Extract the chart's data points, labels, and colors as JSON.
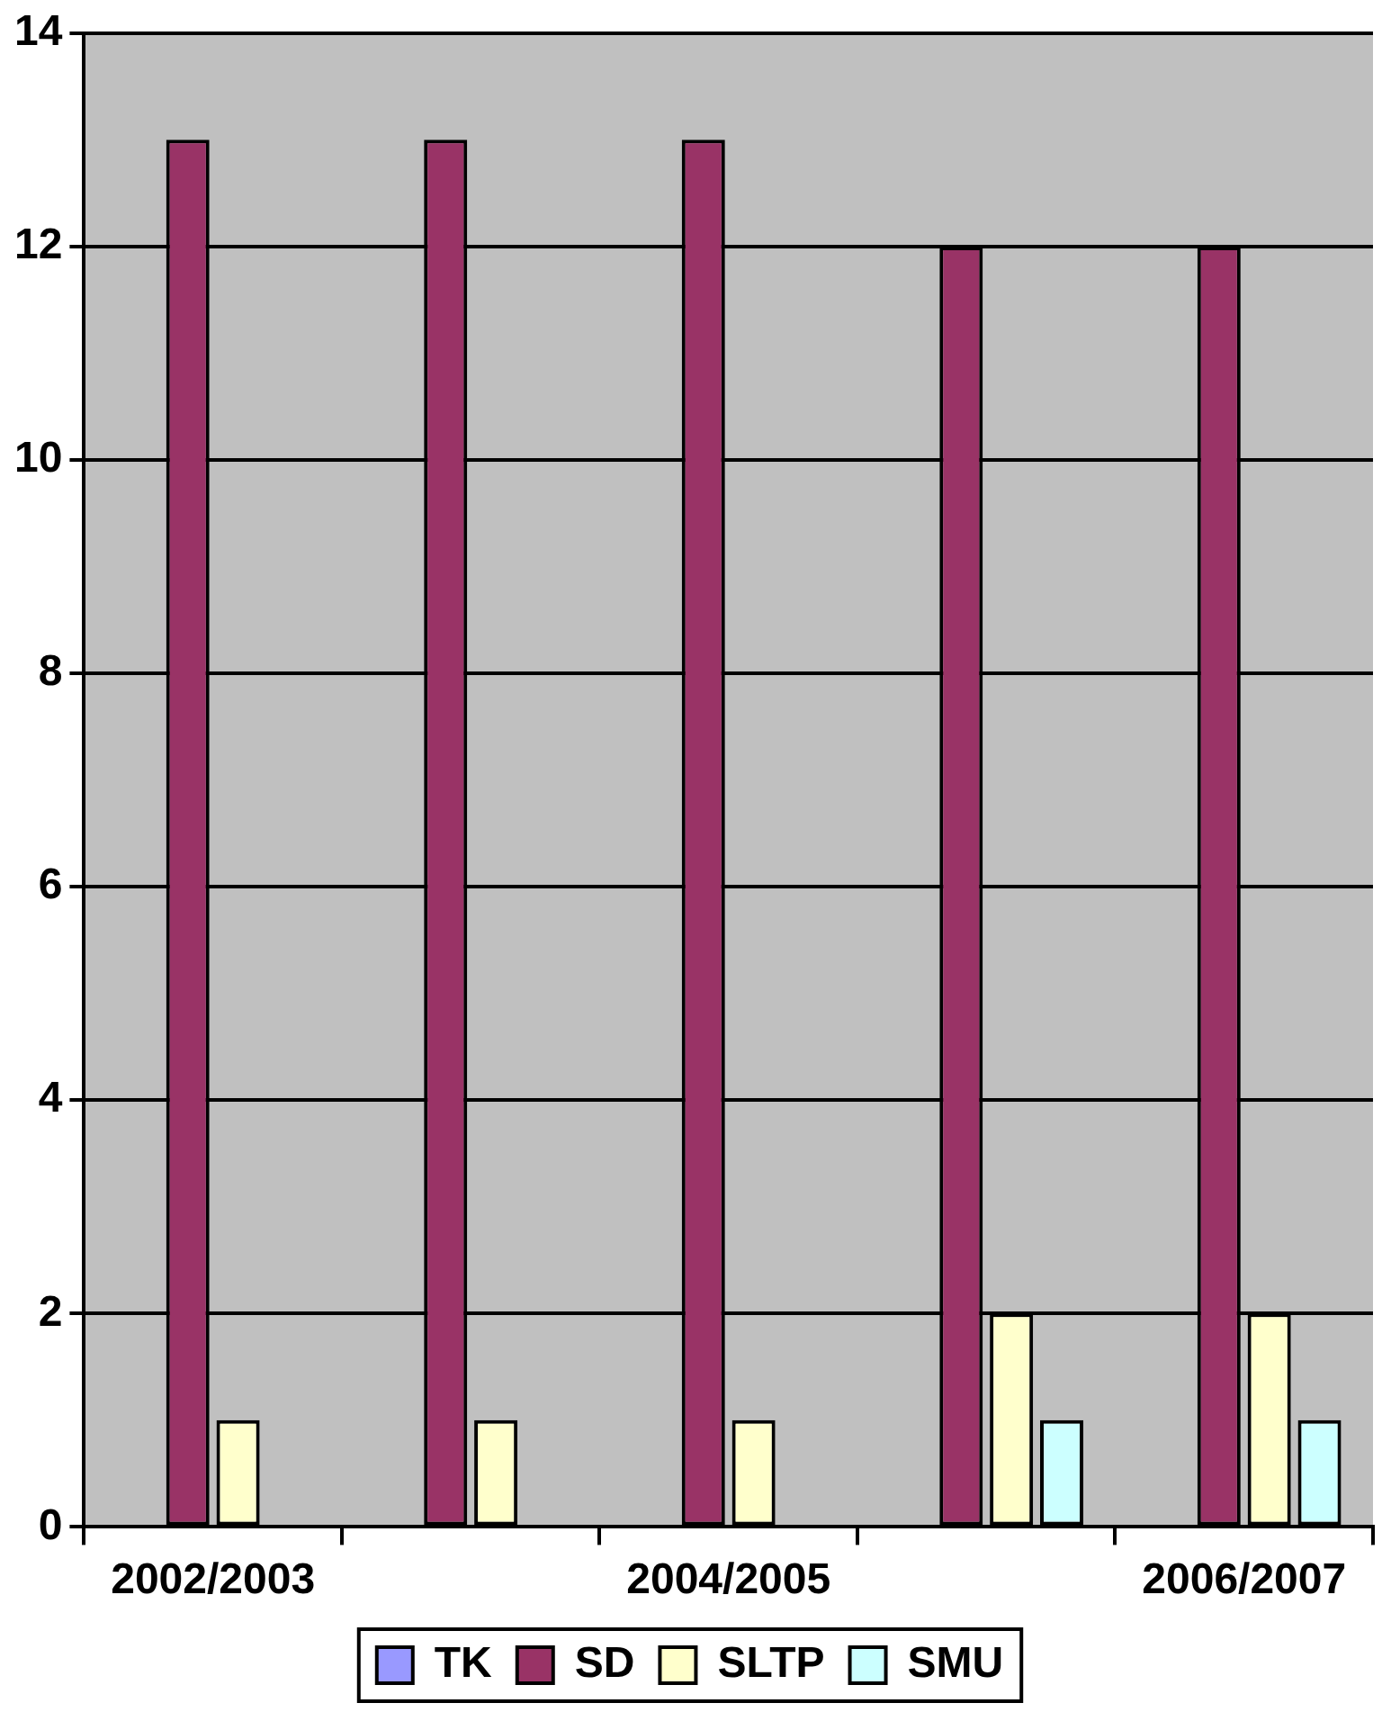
{
  "chart_data": {
    "type": "bar",
    "categories": [
      "2002/2003",
      null,
      "2004/2005",
      null,
      "2006/2007"
    ],
    "series": [
      {
        "name": "TK",
        "color": "#9999ff",
        "values": [
          0,
          0,
          0,
          0,
          0
        ]
      },
      {
        "name": "SD",
        "color": "#993366",
        "values": [
          13,
          13,
          13,
          12,
          12
        ]
      },
      {
        "name": "SLTP",
        "color": "#ffffcc",
        "values": [
          1,
          1,
          1,
          2,
          2
        ]
      },
      {
        "name": "SMU",
        "color": "#ccffff",
        "values": [
          0,
          0,
          0,
          1,
          1
        ]
      }
    ],
    "ylim": [
      0,
      14
    ],
    "yticks": [
      0,
      2,
      4,
      6,
      8,
      10,
      12,
      14
    ],
    "grid": "y",
    "legend": "bottom"
  }
}
